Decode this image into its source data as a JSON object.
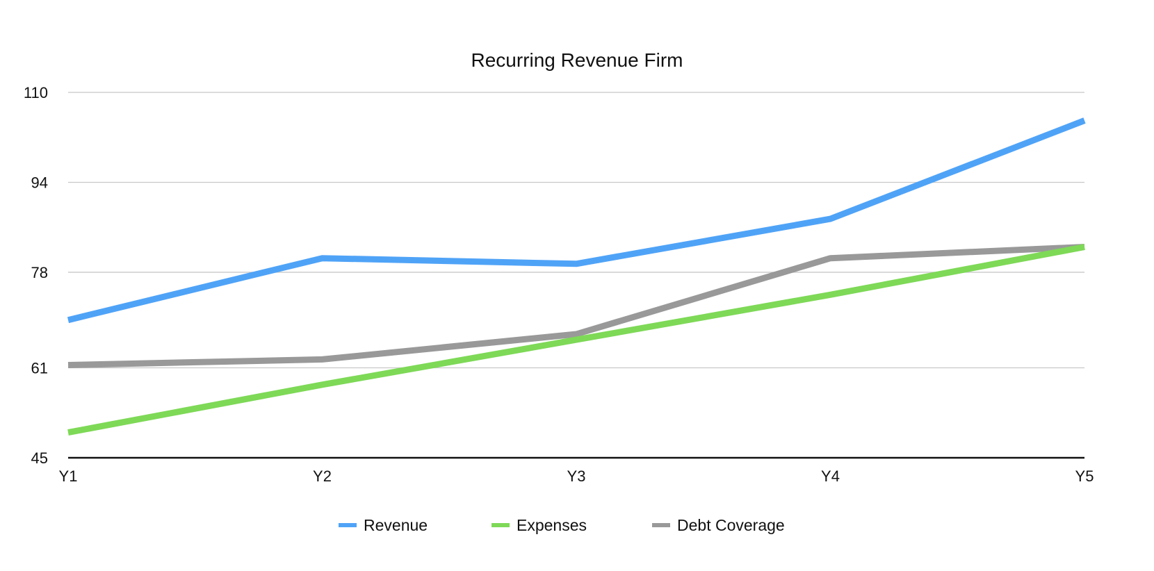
{
  "chart_data": {
    "type": "line",
    "title": "Recurring Revenue Firm",
    "xlabel": "",
    "ylabel": "",
    "categories": [
      "Y1",
      "Y2",
      "Y3",
      "Y4",
      "Y5"
    ],
    "ylim": [
      45,
      110
    ],
    "yticks": [
      "45",
      "61",
      "78",
      "94",
      "110"
    ],
    "grid": true,
    "legend_position": "bottom",
    "series": [
      {
        "name": "Revenue",
        "color": "#4fa3f7",
        "values": [
          69.5,
          80.5,
          79.5,
          87.5,
          105
        ]
      },
      {
        "name": "Expenses",
        "color": "#7ed957",
        "values": [
          49.5,
          58,
          66,
          74,
          82.5
        ]
      },
      {
        "name": "Debt Coverage",
        "color": "#999999",
        "values": [
          61.5,
          62.5,
          67,
          80.5,
          82.5
        ]
      }
    ]
  }
}
